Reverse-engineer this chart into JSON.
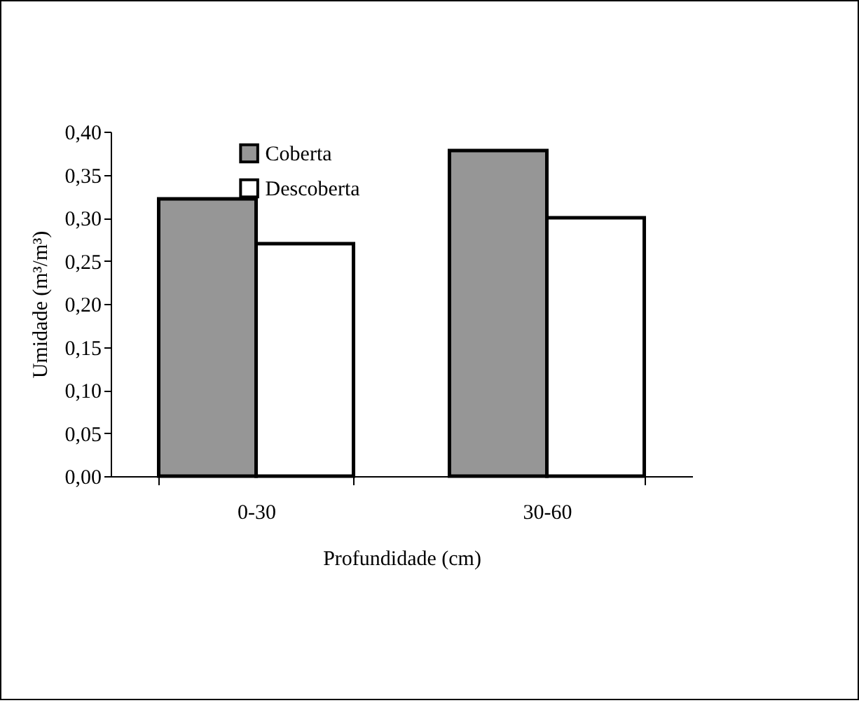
{
  "chart_data": {
    "type": "bar",
    "xlabel": "Profundidade (cm)",
    "ylabel": "Umidade (m³/m³)",
    "categories": [
      "0-30",
      "30-60"
    ],
    "series": [
      {
        "name": "Coberta",
        "color": "#969696",
        "values": [
          0.322,
          0.378
        ]
      },
      {
        "name": "Descoberta",
        "color": "#ffffff",
        "values": [
          0.27,
          0.3
        ]
      }
    ],
    "ylim": [
      0,
      0.4
    ],
    "yticks": [
      {
        "value": 0,
        "label": "0,00"
      },
      {
        "value": 0.05,
        "label": "0,05"
      },
      {
        "value": 0.1,
        "label": "0,10"
      },
      {
        "value": 0.15,
        "label": "0,15"
      },
      {
        "value": 0.2,
        "label": "0,20"
      },
      {
        "value": 0.25,
        "label": "0,25"
      },
      {
        "value": 0.3,
        "label": "0,30"
      },
      {
        "value": 0.35,
        "label": "0,35"
      },
      {
        "value": 0.4,
        "label": "0,40"
      }
    ],
    "grid": false,
    "legend": "top"
  }
}
